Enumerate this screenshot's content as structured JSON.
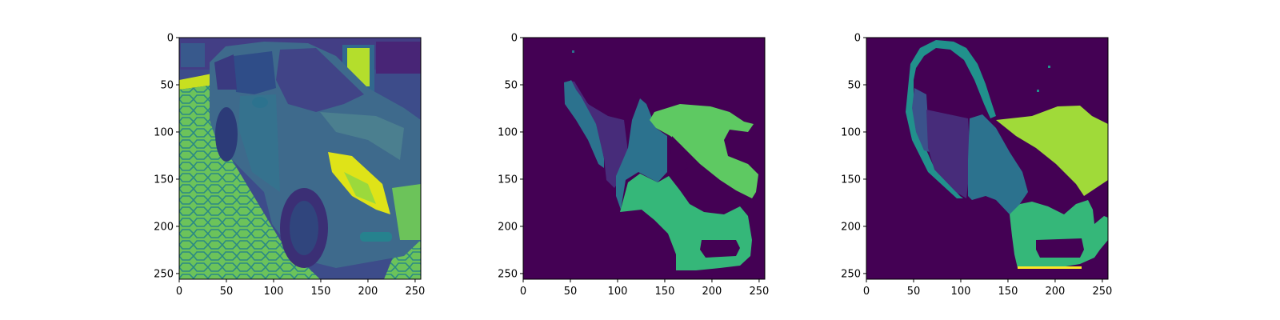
{
  "chart_data": [
    {
      "type": "heatmap",
      "title": "",
      "xlabel": "",
      "ylabel": "",
      "xlim": [
        0,
        256
      ],
      "ylim": [
        256,
        0
      ],
      "x_ticks": [
        0,
        50,
        100,
        150,
        200,
        250
      ],
      "y_ticks": [
        0,
        50,
        100,
        150,
        200,
        250
      ],
      "colormap": "viridis",
      "content": "grayscale photograph of a car rendered with viridis colormap"
    },
    {
      "type": "heatmap",
      "title": "",
      "xlabel": "",
      "ylabel": "",
      "xlim": [
        0,
        256
      ],
      "ylim": [
        256,
        0
      ],
      "x_ticks": [
        0,
        50,
        100,
        150,
        200,
        250
      ],
      "y_ticks": [
        0,
        50,
        100,
        150,
        200,
        250
      ],
      "colormap": "viridis",
      "content": "predicted segmentation mask of car parts"
    },
    {
      "type": "heatmap",
      "title": "",
      "xlabel": "",
      "ylabel": "",
      "xlim": [
        0,
        256
      ],
      "ylim": [
        256,
        0
      ],
      "x_ticks": [
        0,
        50,
        100,
        150,
        200,
        250
      ],
      "y_ticks": [
        0,
        50,
        100,
        150,
        200,
        250
      ],
      "colormap": "viridis",
      "content": "ground-truth segmentation mask of car parts"
    }
  ],
  "colors": {
    "background": "#440154",
    "class_1": "#3b528b",
    "class_2": "#472c7a",
    "class_3": "#2c728e",
    "class_4": "#21918c",
    "class_5": "#35b779",
    "class_6": "#5ec962",
    "class_7": "#a0da39",
    "class_8": "#fde725"
  }
}
